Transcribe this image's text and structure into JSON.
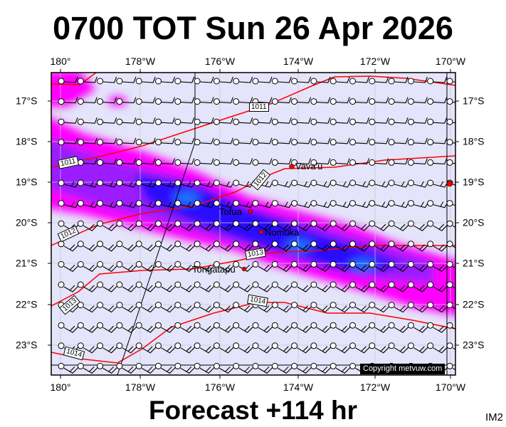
{
  "title": "0700 TOT Sun 26 Apr 2026",
  "footer": "Forecast +114 hr",
  "corner_label": "IM2",
  "copyright": "Copyright metvuw.com",
  "longitude_labels": [
    "180°",
    "178°W",
    "176°W",
    "174°W",
    "172°W",
    "170°W"
  ],
  "latitude_labels": [
    "17°S",
    "18°S",
    "19°S",
    "20°S",
    "21°S",
    "22°S",
    "23°S"
  ],
  "places": [
    {
      "name": "Vava'u"
    },
    {
      "name": "Tofua"
    },
    {
      "name": "Nomuka"
    },
    {
      "name": "Tongatapu"
    }
  ],
  "isobar_labels": [
    "1011",
    "1011",
    "1012",
    "1012",
    "1013",
    "1013",
    "1014",
    "1014"
  ],
  "colors": {
    "background": "#e4e4fa",
    "rain_light": "#ff00ff",
    "rain_mid": "#9a1bff",
    "rain_heavy": "#2a10ff",
    "rain_core": "#1e78ff",
    "isobar": "#ff0000"
  }
}
